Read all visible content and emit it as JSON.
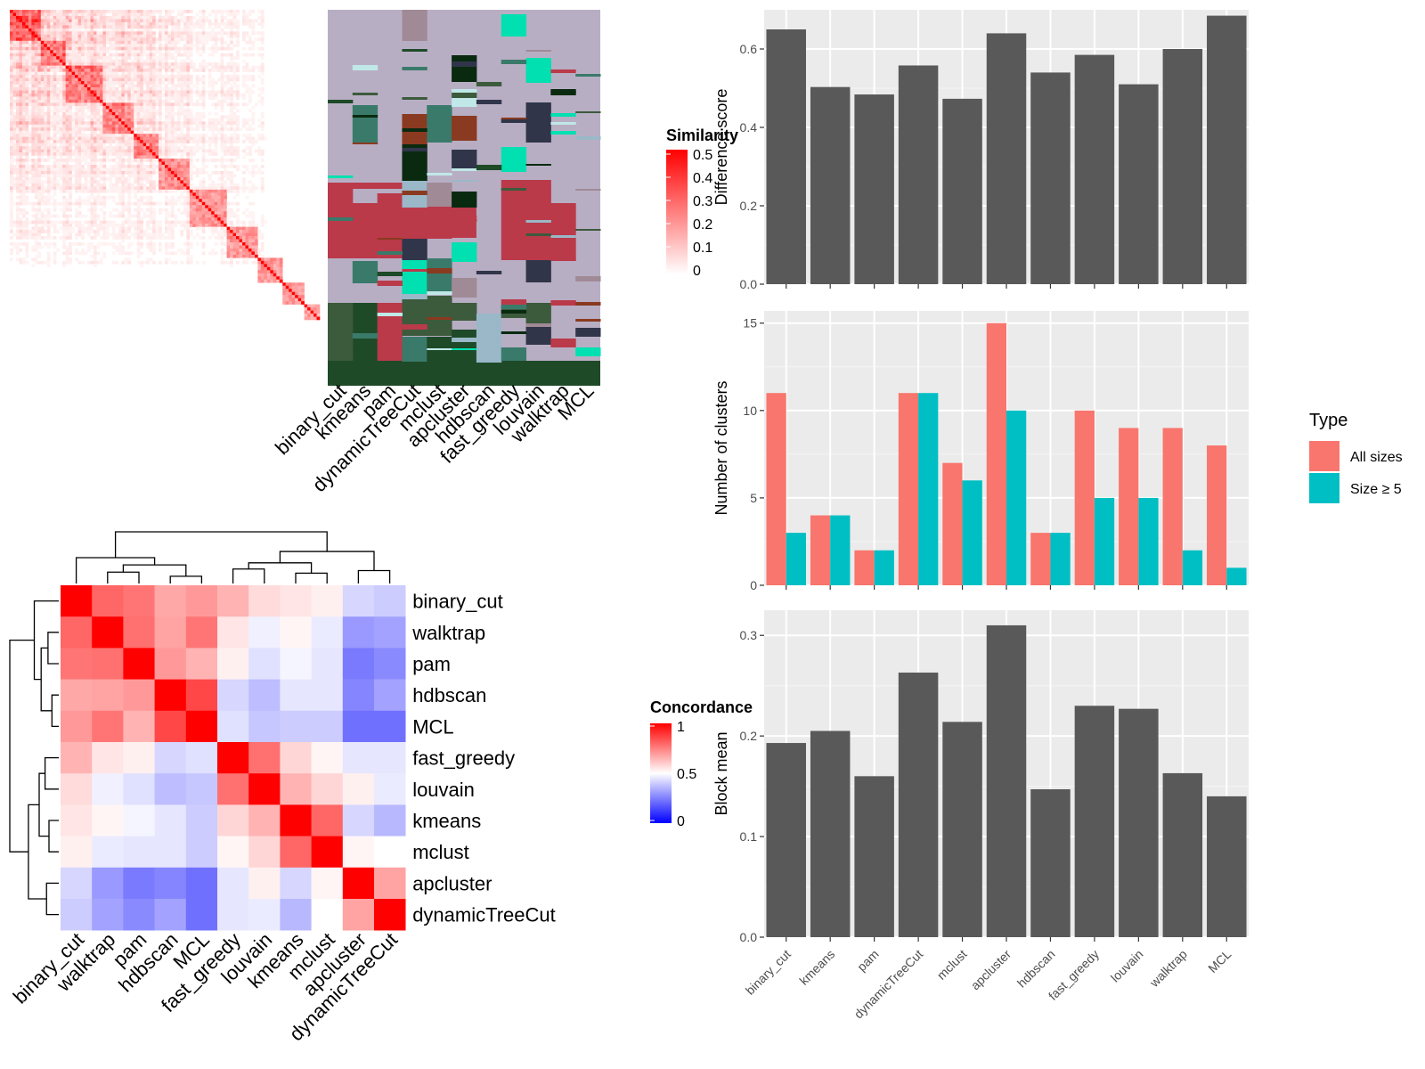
{
  "chart_data": [
    {
      "type": "heatmap",
      "name": "similarity-matrix",
      "legend_title": "Similarity",
      "legend_ticks": [
        "0.5",
        "0.4",
        "0.3",
        "0.2",
        "0.1",
        "0"
      ],
      "range": [
        0,
        0.5
      ],
      "colors": {
        "low": "#ffffff",
        "high": "#ff0000"
      }
    },
    {
      "type": "heatmap",
      "name": "cluster-assignment-matrix",
      "columns": [
        "binary_cut",
        "kmeans",
        "pam",
        "dynamicTreeCut",
        "mclust",
        "apcluster",
        "hdbscan",
        "fast_greedy",
        "louvain",
        "walktrap",
        "MCL"
      ],
      "colors": {
        "background": "#b8aec4",
        "palette": [
          "#ba3a4a",
          "#1e4a28",
          "#3a7a6a",
          "#00e0b0",
          "#3c5a3c",
          "#30354a",
          "#8a3a20",
          "#a08a96",
          "#9ab8c8",
          "#0a2a10",
          "#c0e8e8"
        ]
      }
    },
    {
      "type": "heatmap",
      "name": "concordance-matrix",
      "legend_title": "Concordance",
      "legend_ticks": [
        "1",
        "0.5",
        "0"
      ],
      "range": [
        0,
        1
      ],
      "rows": [
        "binary_cut",
        "walktrap",
        "pam",
        "hdbscan",
        "MCL",
        "fast_greedy",
        "louvain",
        "kmeans",
        "mclust",
        "apcluster",
        "dynamicTreeCut"
      ],
      "columns": [
        "binary_cut",
        "walktrap",
        "pam",
        "hdbscan",
        "MCL",
        "fast_greedy",
        "louvain",
        "kmeans",
        "mclust",
        "apcluster",
        "dynamicTreeCut"
      ],
      "values": [
        [
          1.0,
          0.8,
          0.77,
          0.67,
          0.7,
          0.65,
          0.57,
          0.55,
          0.53,
          0.42,
          0.4
        ],
        [
          0.8,
          1.0,
          0.78,
          0.68,
          0.77,
          0.55,
          0.47,
          0.52,
          0.46,
          0.3,
          0.32
        ],
        [
          0.77,
          0.78,
          1.0,
          0.7,
          0.65,
          0.53,
          0.44,
          0.48,
          0.45,
          0.24,
          0.27
        ],
        [
          0.67,
          0.68,
          0.7,
          1.0,
          0.86,
          0.42,
          0.37,
          0.45,
          0.45,
          0.26,
          0.32
        ],
        [
          0.7,
          0.77,
          0.65,
          0.86,
          1.0,
          0.44,
          0.39,
          0.4,
          0.4,
          0.22,
          0.22
        ],
        [
          0.65,
          0.55,
          0.53,
          0.42,
          0.44,
          1.0,
          0.78,
          0.58,
          0.52,
          0.45,
          0.45
        ],
        [
          0.57,
          0.47,
          0.44,
          0.37,
          0.39,
          0.78,
          1.0,
          0.65,
          0.58,
          0.53,
          0.46
        ],
        [
          0.55,
          0.52,
          0.48,
          0.45,
          0.4,
          0.58,
          0.65,
          1.0,
          0.8,
          0.42,
          0.36
        ],
        [
          0.53,
          0.46,
          0.45,
          0.45,
          0.4,
          0.52,
          0.58,
          0.8,
          1.0,
          0.52,
          0.5
        ],
        [
          0.42,
          0.3,
          0.24,
          0.26,
          0.22,
          0.45,
          0.53,
          0.42,
          0.52,
          1.0,
          0.68
        ],
        [
          0.4,
          0.32,
          0.27,
          0.32,
          0.22,
          0.45,
          0.46,
          0.36,
          0.5,
          0.68,
          1.0
        ]
      ],
      "colors": {
        "low": "#0000ff",
        "mid": "#ffffff",
        "high": "#ff0000"
      }
    },
    {
      "type": "bar",
      "name": "difference-score",
      "categories": [
        "binary_cut",
        "kmeans",
        "pam",
        "dynamicTreeCut",
        "mclust",
        "apcluster",
        "hdbscan",
        "fast_greedy",
        "louvain",
        "walktrap",
        "MCL"
      ],
      "values": [
        0.65,
        0.503,
        0.484,
        0.558,
        0.473,
        0.64,
        0.54,
        0.585,
        0.51,
        0.6,
        0.685
      ],
      "ylabel": "Difference score",
      "ylim": [
        0,
        0.7
      ],
      "yticks": [
        0.0,
        0.2,
        0.4,
        0.6
      ],
      "ytick_labels": [
        "0.0",
        "0.2",
        "0.4",
        "0.6"
      ],
      "bar_color": "#595959"
    },
    {
      "type": "bar",
      "name": "number-of-clusters",
      "categories": [
        "binary_cut",
        "kmeans",
        "pam",
        "dynamicTreeCut",
        "mclust",
        "apcluster",
        "hdbscan",
        "fast_greedy",
        "louvain",
        "walktrap",
        "MCL"
      ],
      "series": [
        {
          "name": "All sizes",
          "values": [
            11,
            4,
            2,
            11,
            7,
            15,
            3,
            10,
            9,
            9,
            8
          ],
          "color": "#f8766d"
        },
        {
          "name": "Size ≥ 5",
          "values": [
            3,
            4,
            2,
            11,
            6,
            10,
            3,
            5,
            5,
            2,
            1
          ],
          "color": "#00bfc4"
        }
      ],
      "ylabel": "Number of clusters",
      "ylim": [
        0,
        15.7
      ],
      "yticks": [
        0,
        5,
        10,
        15
      ],
      "ytick_labels": [
        "0",
        "5",
        "10",
        "15"
      ],
      "legend_title": "Type"
    },
    {
      "type": "bar",
      "name": "block-mean",
      "categories": [
        "binary_cut",
        "kmeans",
        "pam",
        "dynamicTreeCut",
        "mclust",
        "apcluster",
        "hdbscan",
        "fast_greedy",
        "louvain",
        "walktrap",
        "MCL"
      ],
      "values": [
        0.193,
        0.205,
        0.16,
        0.263,
        0.214,
        0.31,
        0.147,
        0.23,
        0.227,
        0.163,
        0.14
      ],
      "ylabel": "Block mean",
      "ylim": [
        0,
        0.325
      ],
      "yticks": [
        0.0,
        0.1,
        0.2,
        0.3
      ],
      "ytick_labels": [
        "0.0",
        "0.1",
        "0.2",
        "0.3"
      ],
      "bar_color": "#595959"
    }
  ]
}
